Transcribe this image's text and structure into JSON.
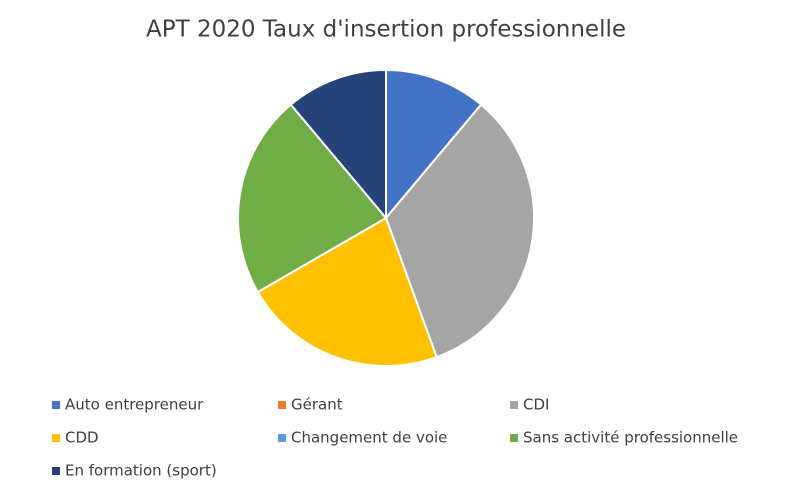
{
  "chart_data": {
    "type": "pie",
    "title": "APT 2020 Taux d'insertion professionnelle",
    "categories": [
      "Auto entrepreneur",
      "Gérant",
      "CDI",
      "CDD",
      "Changement de voie",
      "Sans activité professionnelle",
      "En formation (sport)"
    ],
    "values": [
      1,
      0,
      3,
      2,
      0,
      2,
      1
    ],
    "colors": [
      "#4472c4",
      "#ed7d31",
      "#a5a5a5",
      "#ffc000",
      "#5b9bd5",
      "#70ad47",
      "#264478"
    ],
    "legend": "bottom"
  }
}
